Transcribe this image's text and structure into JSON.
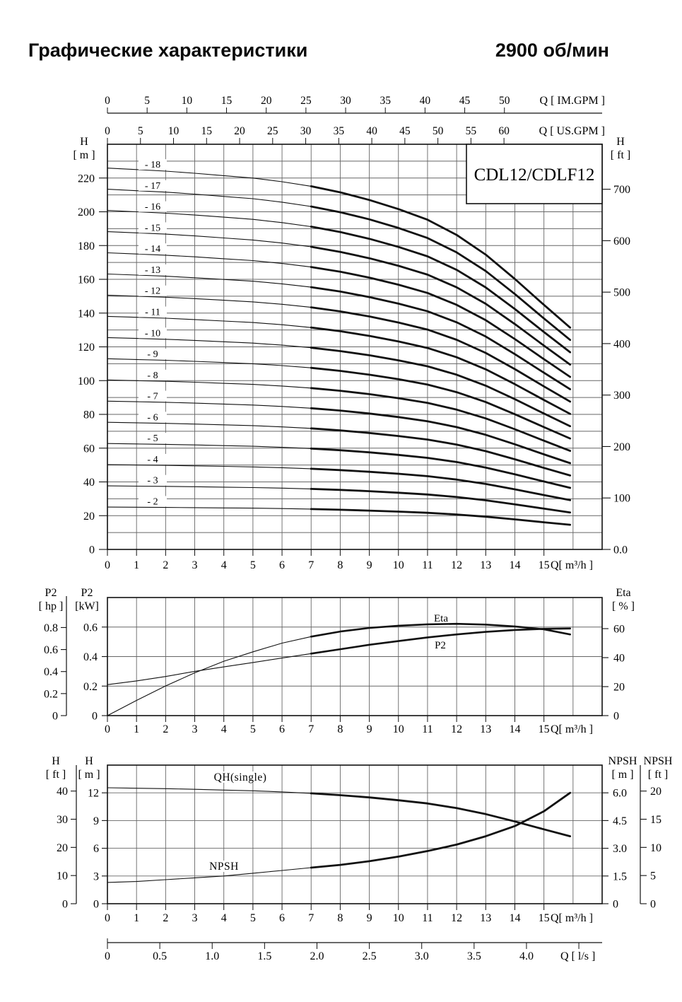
{
  "header": {
    "title": "Графические характеристики",
    "rpm": "2900 об/мин"
  },
  "chart_data": [
    {
      "id": "qh-multistage",
      "type": "line",
      "model_label": "CDL12/CDLF12",
      "x_top_axes": [
        {
          "label": "Q [ IM.GPM ]",
          "m3h_per_unit": 0.27284,
          "ticks": [
            0,
            5,
            10,
            15,
            20,
            25,
            30,
            35,
            40,
            45,
            50
          ]
        },
        {
          "label": "Q [ US.GPM ]",
          "m3h_per_unit": 0.22712,
          "ticks": [
            0,
            5,
            10,
            15,
            20,
            25,
            30,
            35,
            40,
            45,
            50,
            55,
            60
          ]
        }
      ],
      "x_axis": {
        "unit_label": "Q[ m³/h ]",
        "ticks": [
          0,
          1,
          2,
          3,
          4,
          5,
          6,
          7,
          8,
          9,
          10,
          11,
          12,
          13,
          14,
          15
        ],
        "max": 17
      },
      "y_left": {
        "header": [
          "H",
          "[ m ]"
        ],
        "ticks": [
          0,
          20,
          40,
          60,
          80,
          100,
          120,
          140,
          160,
          180,
          200,
          220
        ],
        "grid_step": 10,
        "max": 240
      },
      "y_right": {
        "header": [
          "H",
          "[ ft ]"
        ],
        "ticks": [
          "0.0",
          "100",
          "200",
          "300",
          "400",
          "500",
          "600",
          "700"
        ],
        "m_per_ft": 0.3048
      },
      "q_points": [
        0,
        1,
        2,
        3,
        4,
        5,
        6,
        7,
        8,
        9,
        10,
        11,
        12,
        13,
        14,
        15,
        15.9
      ],
      "bold_from_index": 7,
      "head_per_stage_m": [
        12.55,
        12.5,
        12.45,
        12.38,
        12.3,
        12.22,
        12.1,
        11.95,
        11.75,
        11.5,
        11.2,
        10.85,
        10.35,
        9.7,
        8.9,
        8.05,
        7.3
      ],
      "stages": [
        {
          "stage": 2,
          "label": "- 2"
        },
        {
          "stage": 3,
          "label": "- 3"
        },
        {
          "stage": 4,
          "label": "- 4"
        },
        {
          "stage": 5,
          "label": "- 5"
        },
        {
          "stage": 6,
          "label": "- 6"
        },
        {
          "stage": 7,
          "label": "- 7"
        },
        {
          "stage": 8,
          "label": "- 8"
        },
        {
          "stage": 9,
          "label": "- 9"
        },
        {
          "stage": 10,
          "label": "- 10"
        },
        {
          "stage": 11,
          "label": "- 11"
        },
        {
          "stage": 12,
          "label": "- 12"
        },
        {
          "stage": 13,
          "label": "- 13"
        },
        {
          "stage": 14,
          "label": "- 14"
        },
        {
          "stage": 15,
          "label": "- 15"
        },
        {
          "stage": 16,
          "label": "- 16"
        },
        {
          "stage": 17,
          "label": "- 17"
        },
        {
          "stage": 18,
          "label": "- 18"
        }
      ]
    },
    {
      "id": "power-efficiency",
      "type": "line",
      "x_axis": {
        "unit_label": "Q[ m³/h ]",
        "ticks": [
          0,
          1,
          2,
          3,
          4,
          5,
          6,
          7,
          8,
          9,
          10,
          11,
          12,
          13,
          14,
          15
        ],
        "max": 17
      },
      "y_hp": {
        "header": [
          "P2",
          "[ hp ]"
        ],
        "ticks": [
          "0",
          "0.2",
          "0.4",
          "0.6",
          "0.8"
        ],
        "kw_per_hp": 0.746
      },
      "y_kw": {
        "header": [
          "P2",
          "[kW]"
        ],
        "ticks": [
          "0",
          "0.2",
          "0.4",
          "0.6"
        ],
        "grid": [
          0.2,
          0.4,
          0.6
        ],
        "max": 0.8
      },
      "y_eta": {
        "header": [
          "Eta",
          "[ % ]"
        ],
        "ticks": [
          "0",
          "20",
          "40",
          "60"
        ]
      },
      "q_points": [
        0,
        1,
        2,
        3,
        4,
        5,
        6,
        7,
        8,
        9,
        10,
        11,
        12,
        13,
        14,
        15,
        15.9
      ],
      "bold_from_index": 7,
      "series": [
        {
          "name": "P2",
          "scale": "kw",
          "values": [
            0.21,
            0.235,
            0.265,
            0.3,
            0.33,
            0.36,
            0.39,
            0.42,
            0.45,
            0.48,
            0.505,
            0.53,
            0.55,
            0.567,
            0.58,
            0.588,
            0.59
          ]
        },
        {
          "name": "Eta",
          "scale": "eta",
          "values": [
            0,
            10.5,
            20.5,
            29.5,
            37.5,
            44,
            50,
            54.5,
            58,
            60.5,
            62,
            63,
            63.3,
            62.8,
            61.5,
            59.5,
            56
          ]
        }
      ]
    },
    {
      "id": "single-stage-npsh",
      "type": "line",
      "x_axis": {
        "unit_label": "Q[ m³/h ]",
        "ticks": [
          0,
          1,
          2,
          3,
          4,
          5,
          6,
          7,
          8,
          9,
          10,
          11,
          12,
          13,
          14,
          15
        ],
        "max": 17
      },
      "x_lps": {
        "unit_label": "Q [ l/s ]",
        "m3h_per_unit": 3.6,
        "ticks": [
          "0",
          "0.5",
          "1.0",
          "1.5",
          "2.0",
          "2.5",
          "3.0",
          "3.5",
          "4.0"
        ],
        "extra_unlabeled_tick": 4.5
      },
      "y_ft": {
        "header": [
          "H",
          "[ ft ]"
        ],
        "ticks": [
          0,
          10,
          20,
          30,
          40
        ],
        "m_per_ft": 0.3048
      },
      "y_m": {
        "header": [
          "H",
          "[ m ]"
        ],
        "ticks": [
          0,
          3,
          6,
          9,
          12
        ],
        "grid": [
          3,
          6,
          9,
          12
        ],
        "max": 15
      },
      "y_npsh_m": {
        "header": [
          "NPSH",
          "[ m ]"
        ],
        "ticks": [
          "0",
          "1.5",
          "3.0",
          "4.5",
          "6.0"
        ]
      },
      "y_npsh_ft": {
        "header": [
          "NPSH",
          "[ ft ]"
        ],
        "ticks": [
          "0",
          "5",
          "10",
          "15",
          "20"
        ]
      },
      "q_points": [
        0,
        1,
        2,
        3,
        4,
        5,
        6,
        7,
        8,
        9,
        10,
        11,
        12,
        13,
        14,
        15,
        15.9
      ],
      "bold_from_index": 7,
      "series": [
        {
          "name": "QH(single)",
          "scale": "m",
          "values": [
            12.55,
            12.5,
            12.45,
            12.38,
            12.3,
            12.22,
            12.1,
            11.95,
            11.75,
            11.5,
            11.2,
            10.85,
            10.35,
            9.7,
            8.9,
            8.05,
            7.3
          ]
        },
        {
          "name": "NPSH",
          "scale": "npsh",
          "values": [
            1.15,
            1.2,
            1.3,
            1.4,
            1.5,
            1.65,
            1.8,
            1.95,
            2.1,
            2.3,
            2.55,
            2.85,
            3.2,
            3.65,
            4.2,
            5.0,
            6.0
          ]
        }
      ]
    }
  ]
}
